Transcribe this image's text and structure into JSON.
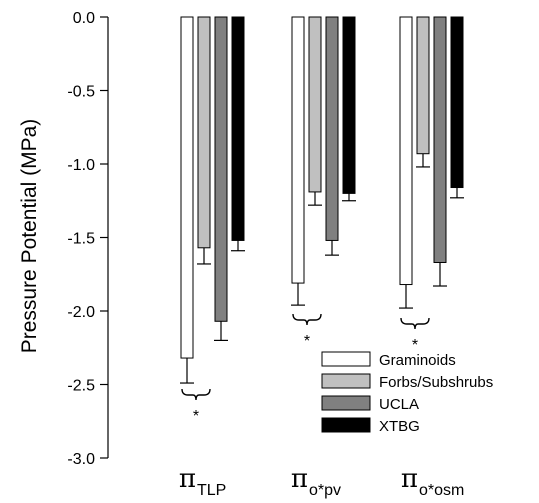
{
  "chart_data": {
    "type": "bar",
    "ylabel": "Pressure Potential (MPa)",
    "ylim": [
      -3.0,
      0.0
    ],
    "yticks": [
      "0.0",
      "-0.5",
      "-1.0",
      "-1.5",
      "-2.0",
      "-2.5",
      "-3.0"
    ],
    "ytick_values": [
      0.0,
      -0.5,
      -1.0,
      -1.5,
      -2.0,
      -2.5,
      -3.0
    ],
    "categories": [
      {
        "main": "π",
        "sub": "TLP"
      },
      {
        "main": "π",
        "sub": "o*pv"
      },
      {
        "main": "π",
        "sub": "o*osm"
      }
    ],
    "series": [
      {
        "name": "Graminoids",
        "color": "#ffffff",
        "values": [
          -2.32,
          -1.81,
          -1.82
        ],
        "errors": [
          0.17,
          0.15,
          0.16
        ]
      },
      {
        "name": "Forbs/Subshrubs",
        "color": "#c0c0c0",
        "values": [
          -1.57,
          -1.19,
          -0.93
        ],
        "errors": [
          0.11,
          0.09,
          0.09
        ]
      },
      {
        "name": "UCLA",
        "color": "#808080",
        "values": [
          -2.07,
          -1.52,
          -1.67
        ],
        "errors": [
          0.13,
          0.1,
          0.16
        ]
      },
      {
        "name": "XTBG",
        "color": "#000000",
        "values": [
          -1.52,
          -1.2,
          -1.16
        ],
        "errors": [
          0.07,
          0.05,
          0.07
        ]
      }
    ],
    "significance_marker": "*",
    "legend_position": "bottom-right",
    "grid": false
  }
}
